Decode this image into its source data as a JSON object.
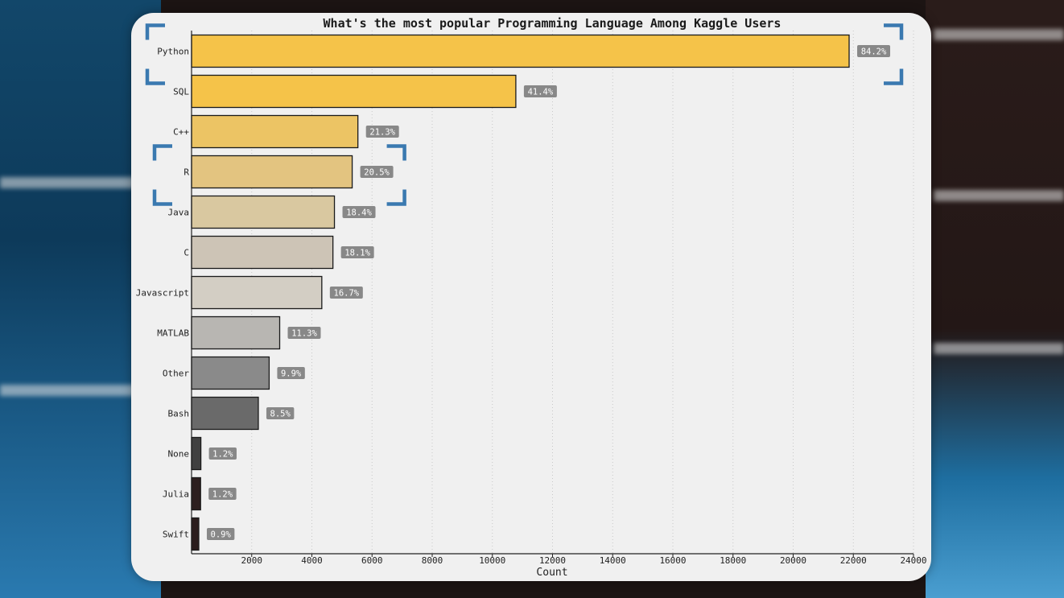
{
  "chart_data": {
    "type": "bar",
    "orientation": "horizontal",
    "title": "What's the most popular Programming Language Among Kaggle Users",
    "xlabel": "Count",
    "ylabel": "",
    "xlim": [
      0,
      24000
    ],
    "x_ticks": [
      "2000",
      "4000",
      "6000",
      "8000",
      "10000",
      "12000",
      "14000",
      "16000",
      "18000",
      "20000",
      "22000",
      "24000"
    ],
    "grid": "vertical dotted",
    "categories": [
      "Python",
      "SQL",
      "C++",
      "R",
      "Java",
      "C",
      "Javascript",
      "MATLAB",
      "Other",
      "Bash",
      "None",
      "Julia",
      "Swift"
    ],
    "values": [
      21860,
      10780,
      5530,
      5340,
      4750,
      4700,
      4330,
      2930,
      2580,
      2220,
      310,
      300,
      240
    ],
    "data_labels": [
      "84.2%",
      "41.4%",
      "21.3%",
      "20.5%",
      "18.4%",
      "18.1%",
      "16.7%",
      "11.3%",
      "9.9%",
      "8.5%",
      "1.2%",
      "1.2%",
      "0.9%"
    ],
    "colors": [
      "#f5c349",
      "#f5c349",
      "#ecc464",
      "#e3c480",
      "#d9c8a0",
      "#cdc4b6",
      "#d3cec4",
      "#b8b6b2",
      "#8a8a8a",
      "#6a6a6a",
      "#404040",
      "#2d1f1f",
      "#2a1c1c"
    ],
    "highlighted_categories": [
      "Python",
      "R"
    ]
  },
  "colors": {
    "highlight_bracket": "#3a79b0",
    "label_box": "#888888",
    "card_background": "#f0f0f0"
  }
}
